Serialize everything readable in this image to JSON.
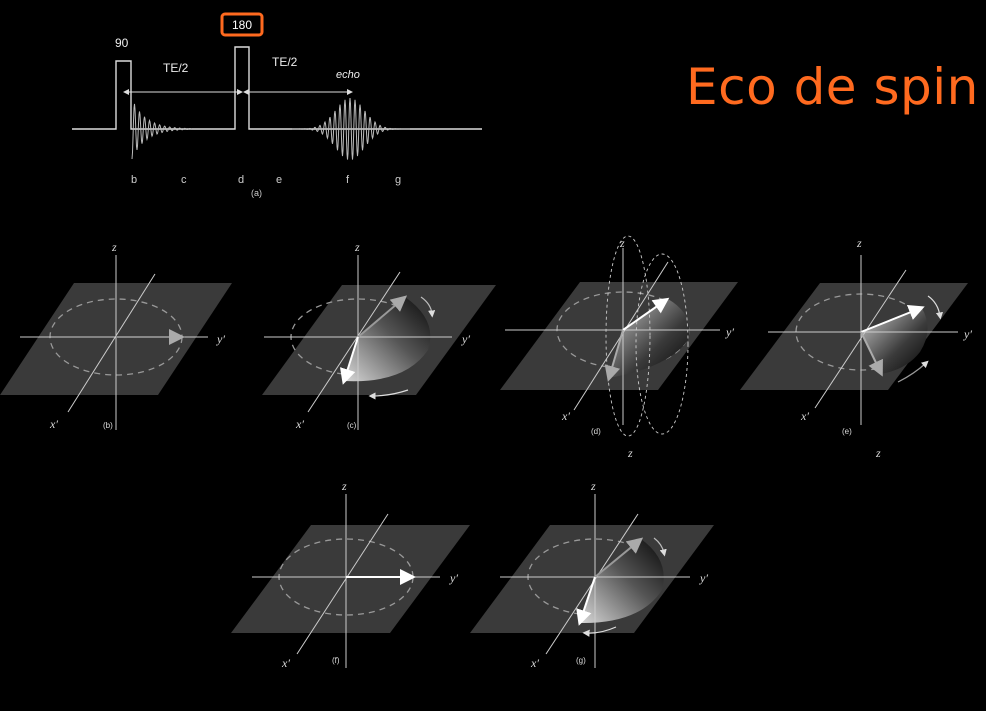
{
  "slide": {
    "title": "Eco de spin",
    "accent_color": "#ff6a1f"
  },
  "pulse_sequence": {
    "pulse_90_label": "90",
    "pulse_180_label": "180",
    "interval_1_label": "TE/2",
    "interval_2_label": "TE/2",
    "echo_label": "echo",
    "time_points": [
      "b",
      "c",
      "d",
      "e",
      "f",
      "g"
    ],
    "caption": "(a)"
  },
  "panels": {
    "b": {
      "caption": "(b)",
      "z": "z",
      "x": "x′",
      "y": "y′"
    },
    "c": {
      "caption": "(c)",
      "z": "z",
      "x": "x′",
      "y": "y′"
    },
    "d": {
      "caption": "(d)",
      "z": "z",
      "x": "x′",
      "y": "y′",
      "extra_z": "z"
    },
    "e": {
      "caption": "(e)",
      "z": "z",
      "x": "x′",
      "y": "y′",
      "extra_z": "z"
    },
    "f": {
      "caption": "(f)",
      "z": "z",
      "x": "x′",
      "y": "y′"
    },
    "g": {
      "caption": "(g)",
      "z": "z",
      "x": "x′",
      "y": "y′"
    }
  }
}
